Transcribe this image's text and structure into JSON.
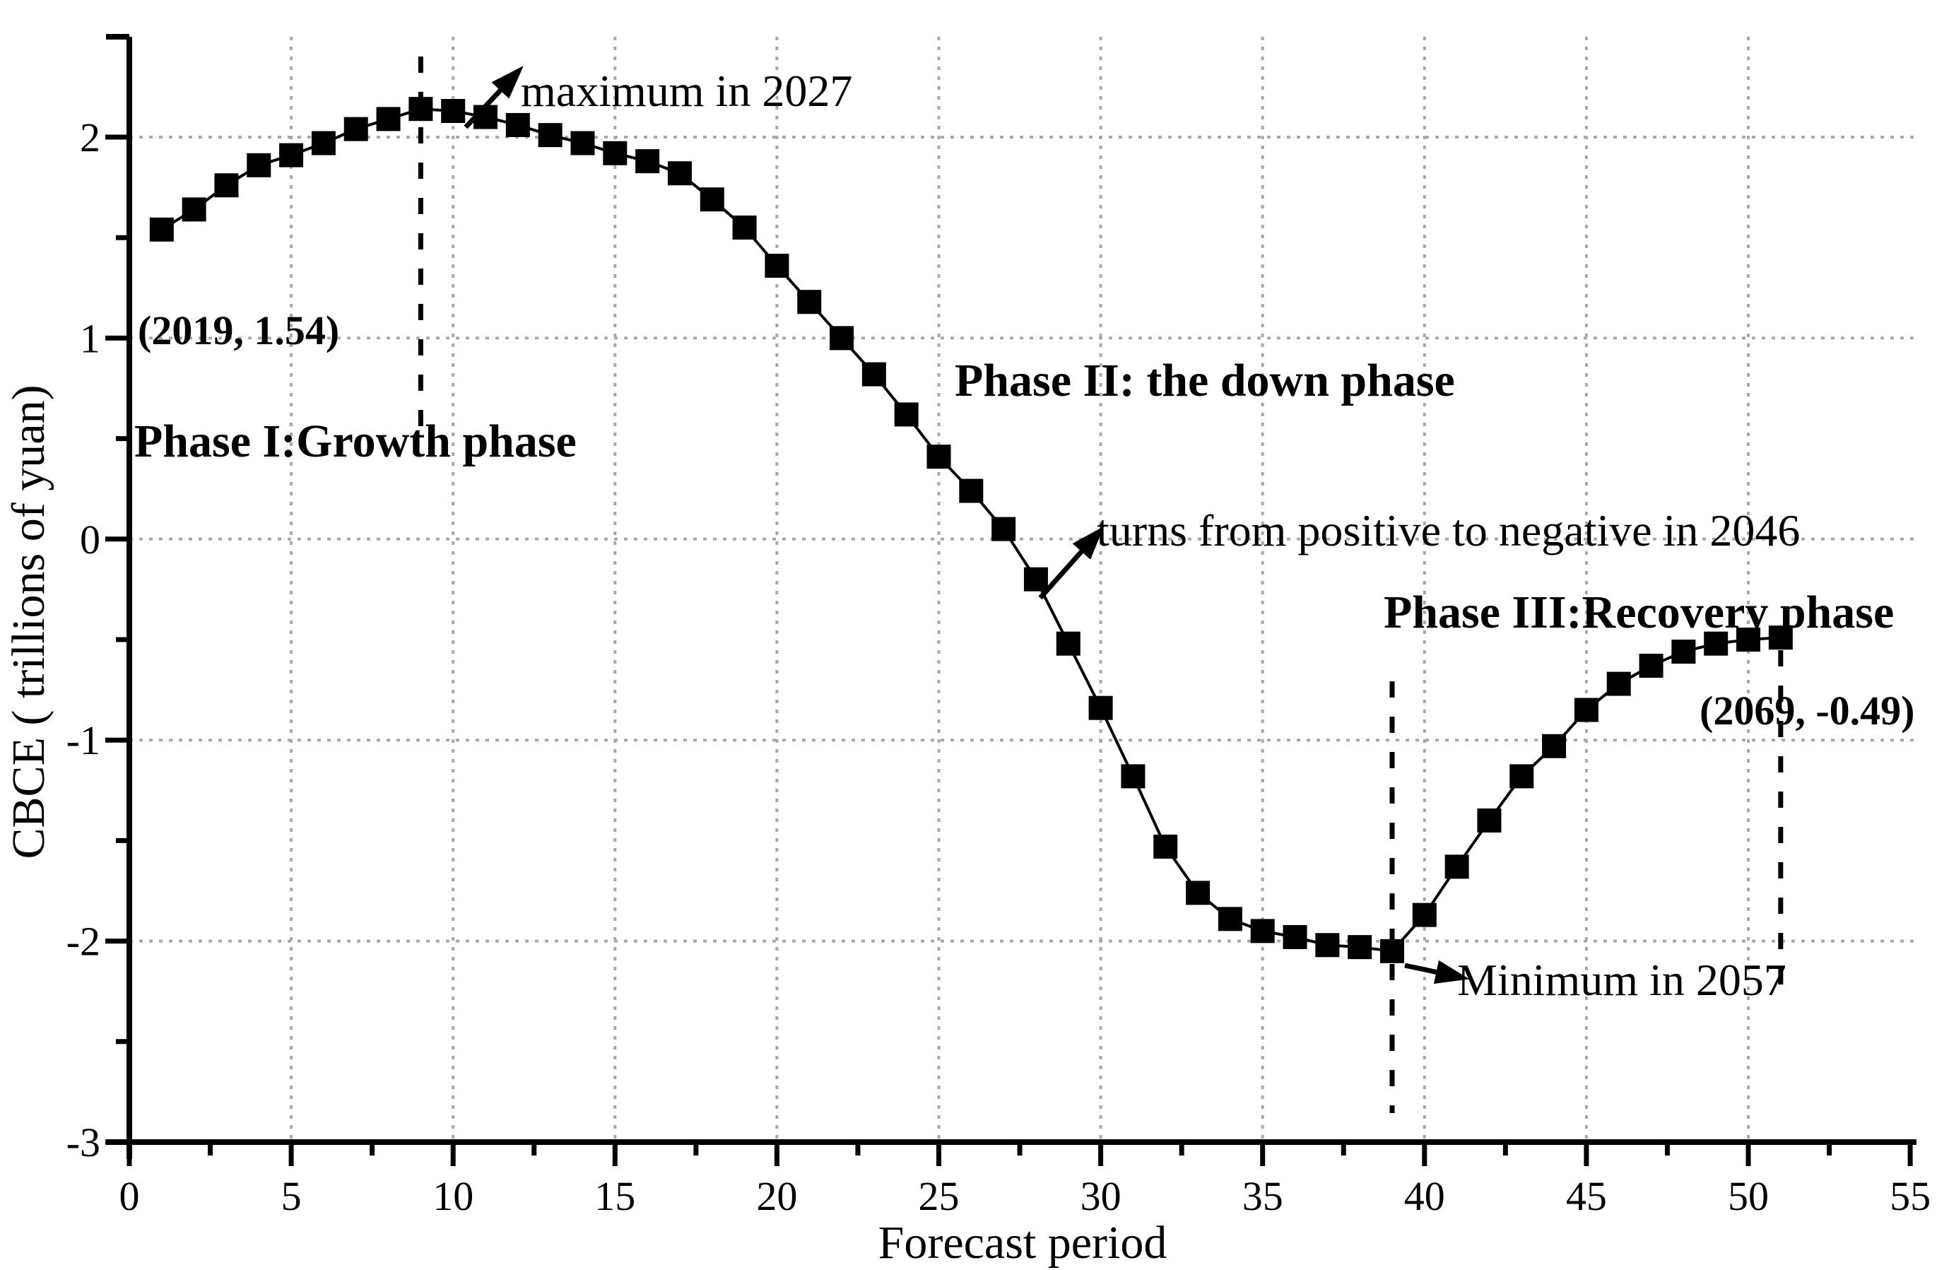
{
  "page": {
    "background": "#ffffff"
  },
  "chart_data": {
    "type": "line",
    "title": "",
    "xlabel": "Forecast period",
    "ylabel": "CBCE ( trillions of yuan)",
    "marker": "filled-square",
    "legend": "none",
    "grid": "dotted-gray-at-major-ticks",
    "xlim": [
      0,
      55
    ],
    "ylim": [
      -3,
      2.5
    ],
    "x_major_ticks": [
      0,
      5,
      10,
      15,
      20,
      25,
      30,
      35,
      40,
      45,
      50,
      55
    ],
    "x_minor_ticks": [
      2.5,
      7.5,
      12.5,
      17.5,
      22.5,
      27.5,
      32.5,
      37.5,
      42.5,
      47.5,
      52.5
    ],
    "y_major_ticks": [
      2,
      1,
      0,
      -1,
      -2,
      -3
    ],
    "y_minor_ticks": [
      1.5,
      0.5,
      -0.5,
      -1.5,
      -2.5
    ],
    "x_gridlines": [
      5,
      10,
      15,
      20,
      25,
      30,
      35,
      40,
      45,
      50
    ],
    "y_gridlines": [
      2,
      1,
      0,
      -1,
      -2
    ],
    "x": [
      1,
      2,
      3,
      4,
      5,
      6,
      7,
      8,
      9,
      10,
      11,
      12,
      13,
      14,
      15,
      16,
      17,
      18,
      19,
      20,
      21,
      22,
      23,
      24,
      25,
      26,
      27,
      28,
      29,
      30,
      31,
      32,
      33,
      34,
      35,
      36,
      37,
      38,
      39,
      40,
      41,
      42,
      43,
      44,
      45,
      46,
      47,
      48,
      49,
      50,
      51
    ],
    "values": [
      1.54,
      1.64,
      1.76,
      1.86,
      1.91,
      1.97,
      2.04,
      2.09,
      2.14,
      2.13,
      2.1,
      2.06,
      2.01,
      1.97,
      1.92,
      1.88,
      1.82,
      1.69,
      1.55,
      1.36,
      1.18,
      1.0,
      0.82,
      0.62,
      0.41,
      0.24,
      0.05,
      -0.2,
      -0.52,
      -0.84,
      -1.18,
      -1.53,
      -1.76,
      -1.89,
      -1.95,
      -1.98,
      -2.02,
      -2.03,
      -2.05,
      -1.87,
      -1.63,
      -1.4,
      -1.18,
      -1.03,
      -0.85,
      -0.72,
      -0.63,
      -0.56,
      -0.52,
      -0.5,
      -0.49
    ],
    "phase_boundary_lines": [
      {
        "x": 9
      },
      {
        "x": 39
      },
      {
        "x": 51
      }
    ],
    "key_points": {
      "start": {
        "year": 2019,
        "value": 1.54
      },
      "maximum": {
        "year": 2027,
        "value": 2.14
      },
      "sign_change_year": 2046,
      "minimum": {
        "year": 2057,
        "value": -2.05
      },
      "end": {
        "year": 2069,
        "value": -0.49
      }
    }
  },
  "annotations": {
    "max_label": "maximum in 2027",
    "turns_label": "turns from positive to negative in 2046",
    "min_label": "Minimum in 2057",
    "phase1": "Phase I:Growth phase",
    "phase2": "Phase II: the down phase",
    "phase3": "Phase III:Recovery phase",
    "start_point": "(2019, 1.54)",
    "end_point": "(2069, -0.49)"
  },
  "colors": {
    "axis": "#000000",
    "grid": "#a8a8a8",
    "marker": "#000000",
    "dashed_line": "#000000",
    "text": "#000000",
    "background": "#ffffff"
  }
}
